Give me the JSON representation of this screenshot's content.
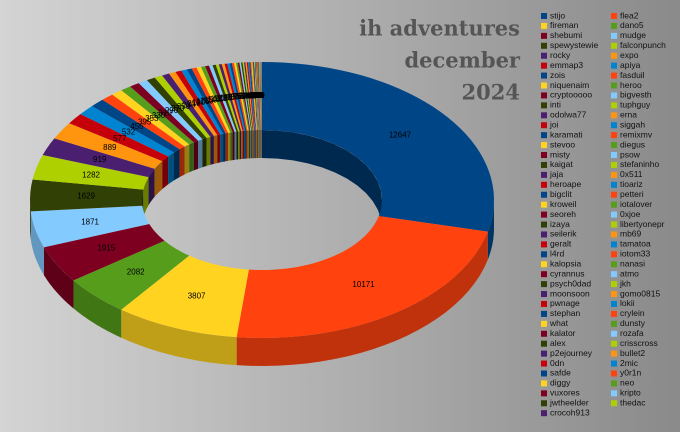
{
  "chart_data": {
    "type": "donut",
    "title_lines": [
      "ih adventures",
      "december",
      "2024"
    ],
    "categories": [
      "stijo",
      "flea2",
      "fireman",
      "dano5",
      "shebumi",
      "mudge",
      "spewystewie",
      "falconpunch",
      "rocky",
      "expo",
      "emmap3",
      "apiya",
      "zois",
      "fasduil",
      "niquenaim",
      "heroo",
      "cryptooooo",
      "bigvesth",
      "inti",
      "tuphguy",
      "odolwa77",
      "erna",
      "joi",
      "siggah",
      "karamati",
      "remixmv",
      "stevoo",
      "diegus",
      "misty",
      "psow",
      "kaigat",
      "stefaninho",
      "jaja",
      "0x511",
      "heroape",
      "tioariz",
      "bigclit",
      "petteri",
      "kroweil",
      "iotalover",
      "seoreh",
      "0xjoe",
      "izaya",
      "libertyonepr",
      "seilerik",
      "mb69",
      "geralt",
      "tamatoa",
      "l4rd",
      "iotom33",
      "kalopsia",
      "nanasi",
      "cyrannus",
      "atmo",
      "psych0dad",
      "jkh",
      "moonsoon",
      "gomo0815",
      "pwnage",
      "lokii",
      "stephan",
      "crylein",
      "what",
      "dunsty",
      "kalator",
      "rozafa",
      "alex",
      "crisscross",
      "p2ejourney",
      "bullet2",
      "0dn",
      "2mic",
      "safde",
      "y0r1n",
      "diggy",
      "neo",
      "vuxores",
      "kripto",
      "jwtheelder",
      "thedac",
      "crocoh913"
    ],
    "values": [
      12647,
      10171,
      3807,
      2082,
      1915,
      1871,
      1629,
      1282,
      919,
      889,
      577,
      532,
      456,
      395,
      353,
      330,
      310,
      290,
      270,
      250,
      230,
      210,
      190,
      175,
      160,
      150,
      140,
      130,
      120,
      110,
      100,
      95,
      90,
      85,
      80,
      75,
      70,
      65,
      60,
      55,
      50,
      48,
      46,
      44,
      42,
      40,
      38,
      36,
      34,
      32,
      30,
      28,
      26,
      24,
      22,
      20,
      18,
      16,
      15,
      14,
      13,
      12,
      11,
      10,
      9,
      8,
      7,
      6,
      5,
      5,
      4,
      4,
      3,
      3,
      2,
      2,
      2,
      1,
      1,
      1,
      1
    ],
    "colors": [
      "#004586",
      "#ff420e",
      "#ffd320",
      "#579d1c",
      "#7e0021",
      "#83caff",
      "#314004",
      "#aecf00",
      "#4b1f6f",
      "#ff950e",
      "#c5000b",
      "#0084d1"
    ],
    "legend": "right",
    "legend_columns": 2
  }
}
